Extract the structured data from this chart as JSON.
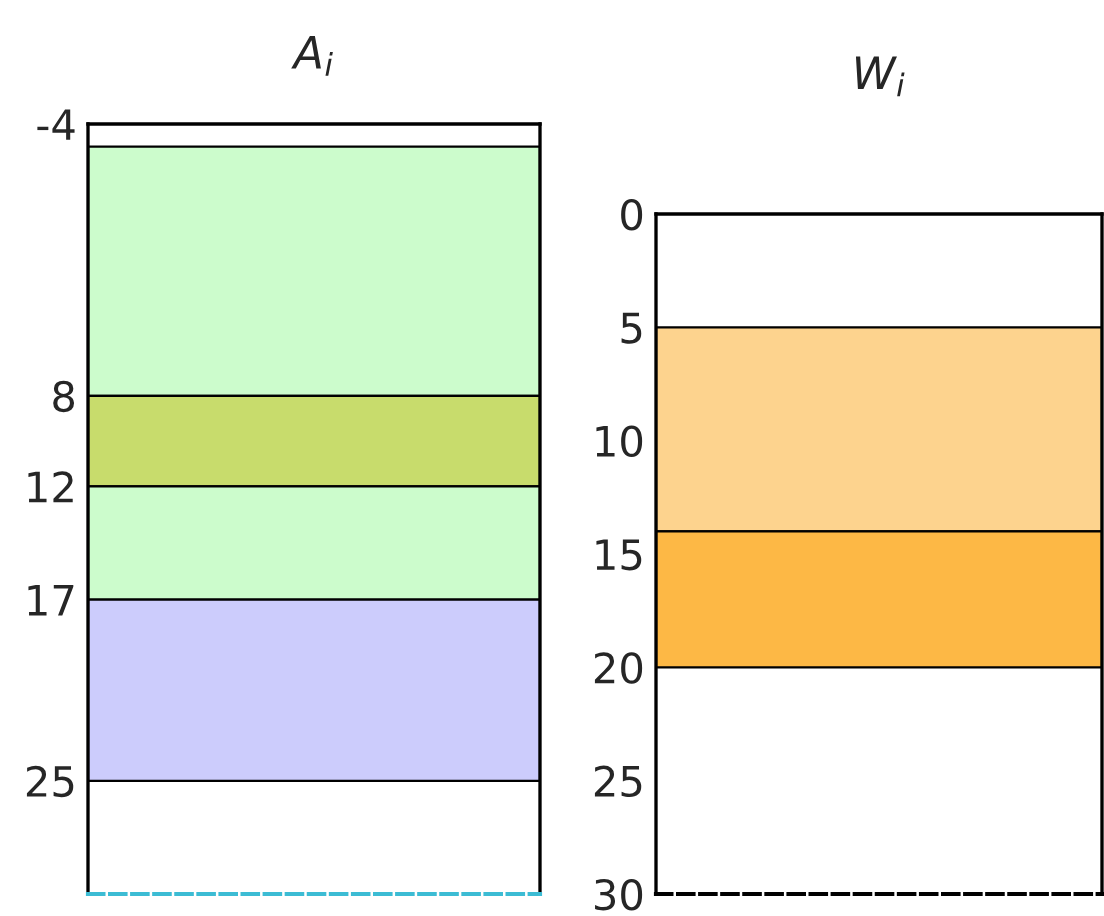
{
  "chart_data": [
    {
      "type": "bar",
      "title": "A$_{i}$",
      "categories": [
        null
      ],
      "ylim": [
        30,
        -4
      ],
      "yticks": [
        -4,
        8,
        12,
        17,
        25
      ],
      "grid": false,
      "series": [
        {
          "values": [
            11
          ],
          "base": [
            -3
          ],
          "color": "#ccfccc"
        },
        {
          "values": [
            4
          ],
          "base": [
            8
          ],
          "color": "#c8dc6c"
        },
        {
          "values": [
            5
          ],
          "base": [
            12
          ],
          "color": "#ccfccc"
        },
        {
          "values": [
            8
          ],
          "base": [
            17
          ],
          "color": "#ccccfc"
        }
      ]
    },
    {
      "type": "bar",
      "title": "W$_{i}$",
      "categories": [
        null
      ],
      "ylim": [
        30,
        0
      ],
      "yticks": [
        0,
        5,
        10,
        15,
        20,
        25,
        30
      ],
      "grid": false,
      "series": [
        {
          "values": [
            9
          ],
          "base": [
            5
          ],
          "color": "#fdd38e"
        },
        {
          "values": [
            6
          ],
          "base": [
            14
          ],
          "color": "#fdb845"
        }
      ]
    }
  ]
}
